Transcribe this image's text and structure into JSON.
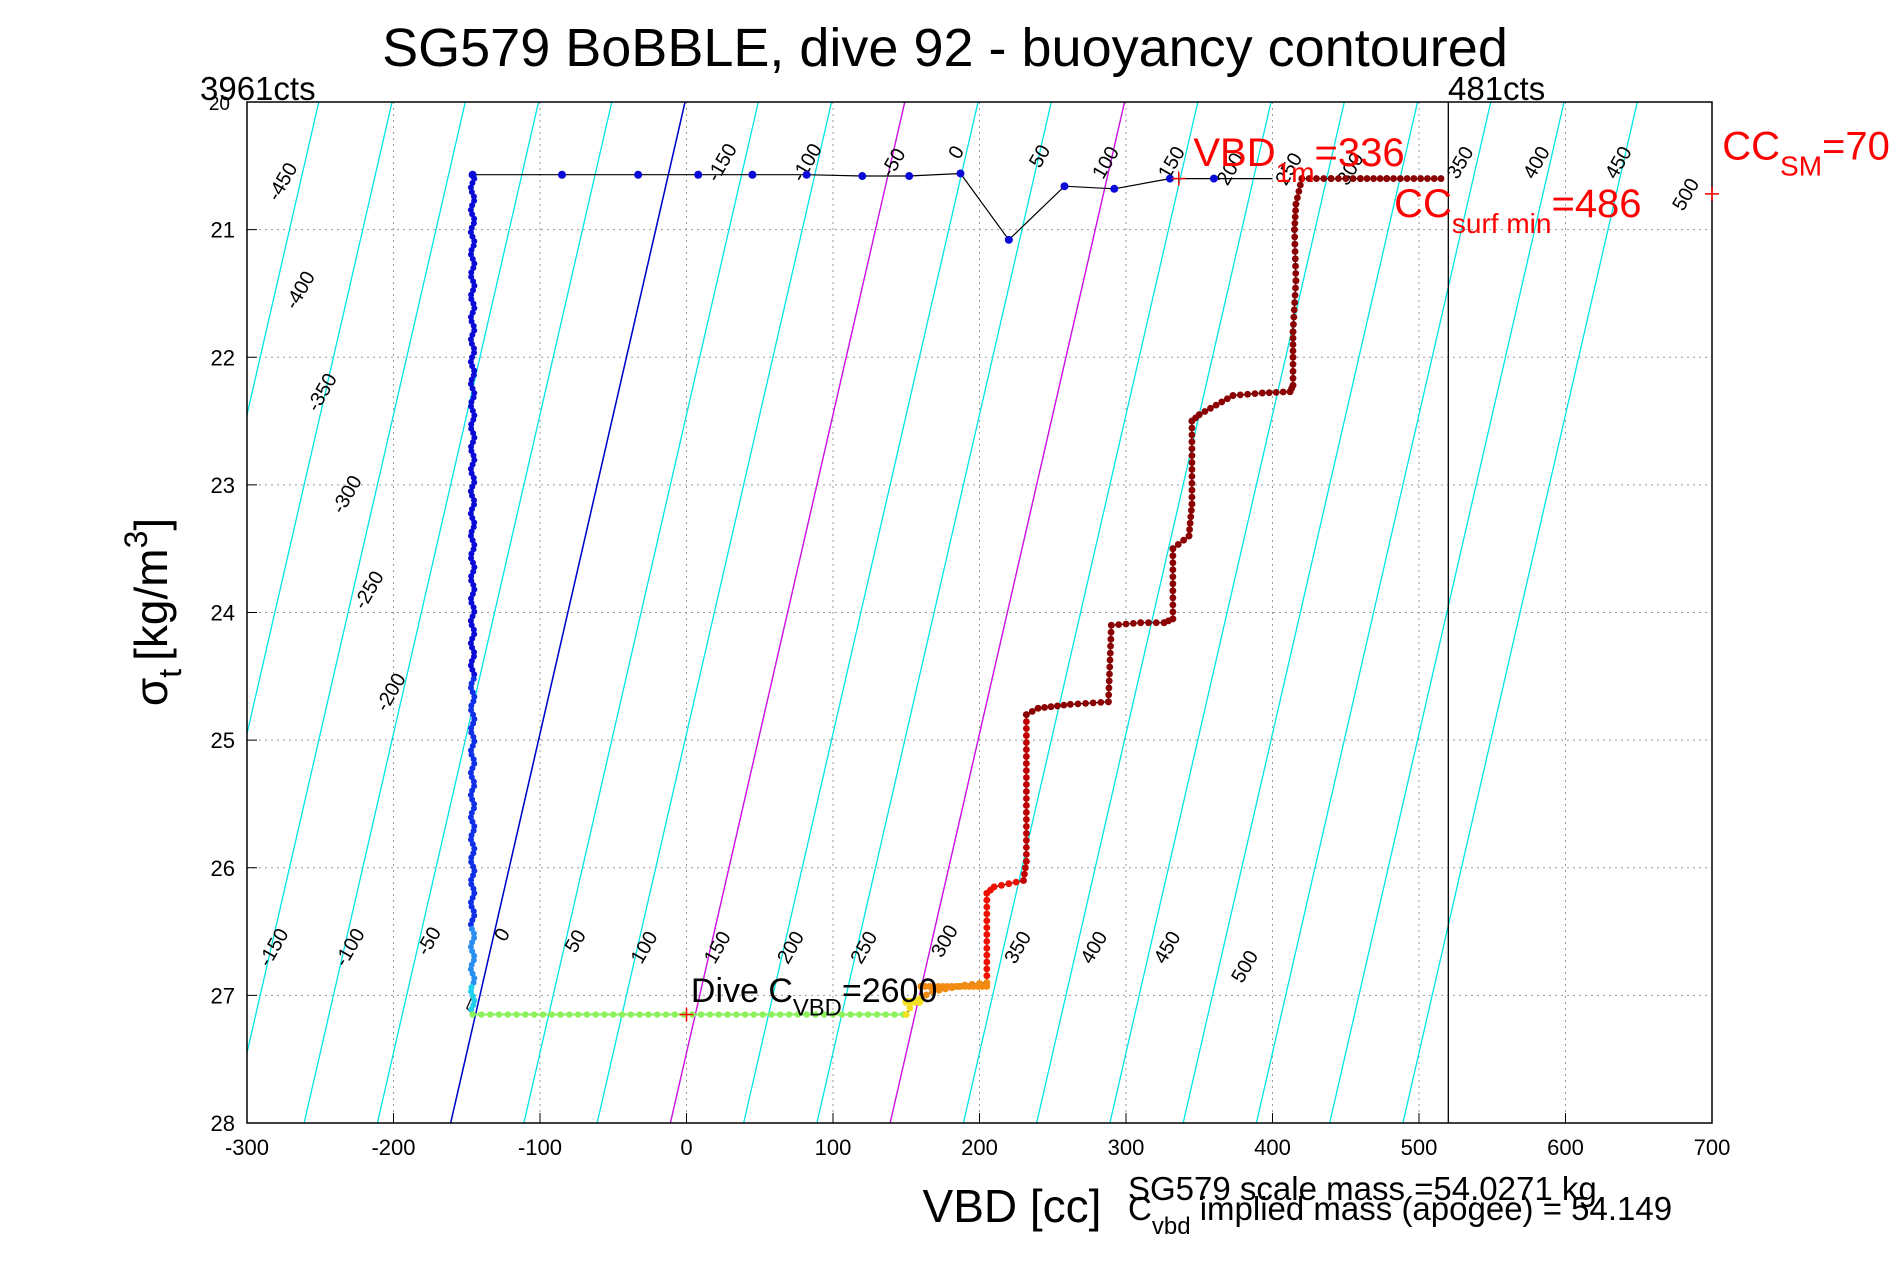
{
  "chart_data": {
    "type": "scatter",
    "title": "SG579 BoBBLE, dive 92 - buoyancy contoured",
    "xlabel": "VBD [cc]",
    "ylabel_main": "σ",
    "ylabel_sub": "t",
    "ylabel_unit": "[kg/m",
    "ylabel_sup": "3",
    "ylabel_close": "]",
    "xlim": [
      -300,
      700
    ],
    "ylim": [
      20,
      28
    ],
    "y_reversed": true,
    "grid": true,
    "x_ticks": [
      -300,
      -200,
      -100,
      0,
      100,
      200,
      300,
      400,
      500,
      600,
      700
    ],
    "y_ticks": [
      21,
      22,
      23,
      24,
      25,
      26,
      27,
      28
    ],
    "y_top_tick_label": "20",
    "top_left_label": "3961cts",
    "top_right_label": "481cts",
    "vertical_line_x": 520,
    "diagonal_lines": {
      "slope_cc_per_sigma": 16.07,
      "cyan_offsets": [
        -500,
        -450,
        -400,
        -350,
        -300,
        -250,
        -200,
        -150,
        -100,
        -50,
        0,
        50,
        100,
        150,
        200,
        250,
        300,
        350,
        400,
        450,
        500,
        550,
        600,
        650
      ],
      "blue_offset": 0,
      "magenta_offsets": [
        150,
        300
      ],
      "colors": {
        "cyan": "#00e5e5",
        "blue": "#0000cc",
        "magenta": "#e600e6"
      }
    },
    "contour_labels_top": [
      {
        "label": "-450",
        "x": -272,
        "y": 20.65
      },
      {
        "label": "-400",
        "x": -260,
        "y": 21.5
      },
      {
        "label": "-350",
        "x": -245,
        "y": 22.3
      },
      {
        "label": "-300",
        "x": -228,
        "y": 23.1
      },
      {
        "label": "-250",
        "x": -213,
        "y": 23.85
      },
      {
        "label": "-200",
        "x": -198,
        "y": 24.65
      },
      {
        "label": "-150",
        "x": 28,
        "y": 20.5
      },
      {
        "label": "-100",
        "x": 86,
        "y": 20.5
      },
      {
        "label": "-50",
        "x": 145,
        "y": 20.5
      },
      {
        "label": "0",
        "x": 188,
        "y": 20.42
      },
      {
        "label": "50",
        "x": 245,
        "y": 20.45
      },
      {
        "label": "100",
        "x": 290,
        "y": 20.5
      },
      {
        "label": "150",
        "x": 335,
        "y": 20.5
      },
      {
        "label": "200",
        "x": 375,
        "y": 20.55
      },
      {
        "label": "250",
        "x": 415,
        "y": 20.55
      },
      {
        "label": "300",
        "x": 457,
        "y": 20.55
      },
      {
        "label": "350",
        "x": 532,
        "y": 20.5
      },
      {
        "label": "400",
        "x": 584,
        "y": 20.5
      },
      {
        "label": "450",
        "x": 640,
        "y": 20.5
      },
      {
        "label": "500",
        "x": 686,
        "y": 20.75
      }
    ],
    "contour_labels_bottom": [
      {
        "label": "-150",
        "x": -278,
        "y": 26.65
      },
      {
        "label": "-100",
        "x": -226,
        "y": 26.65
      },
      {
        "label": "-50",
        "x": -172,
        "y": 26.6
      },
      {
        "label": "0",
        "x": -122,
        "y": 26.55
      },
      {
        "label": "50",
        "x": -72,
        "y": 26.6
      },
      {
        "label": "100",
        "x": -25,
        "y": 26.65
      },
      {
        "label": "150",
        "x": 25,
        "y": 26.65
      },
      {
        "label": "200",
        "x": 75,
        "y": 26.65
      },
      {
        "label": "250",
        "x": 125,
        "y": 26.65
      },
      {
        "label": "300",
        "x": 180,
        "y": 26.6
      },
      {
        "label": "350",
        "x": 230,
        "y": 26.65
      },
      {
        "label": "400",
        "x": 282,
        "y": 26.65
      },
      {
        "label": "450",
        "x": 332,
        "y": 26.65
      },
      {
        "label": "500",
        "x": 385,
        "y": 26.8
      }
    ],
    "descent_path": [
      [
        400,
        20.6
      ],
      [
        360,
        20.6
      ],
      [
        330,
        20.6
      ],
      [
        292,
        20.68
      ],
      [
        258,
        20.66
      ],
      [
        220,
        21.08
      ],
      [
        187,
        20.56
      ],
      [
        152,
        20.58
      ],
      [
        120,
        20.58
      ],
      [
        82,
        20.57
      ],
      [
        45,
        20.57
      ],
      [
        8,
        20.57
      ],
      [
        -33,
        20.57
      ],
      [
        -85,
        20.57
      ],
      [
        -143,
        20.57
      ],
      [
        -146,
        20.57
      ],
      [
        -146,
        21.0
      ],
      [
        -146,
        27.0
      ],
      [
        -150,
        27.1
      ],
      [
        -146,
        27.15
      ]
    ],
    "descent_points": [
      [
        360,
        20.6
      ],
      [
        330,
        20.6
      ],
      [
        292,
        20.68
      ],
      [
        258,
        20.66
      ],
      [
        220,
        21.08
      ],
      [
        187,
        20.56
      ],
      [
        152,
        20.58
      ],
      [
        120,
        20.58
      ],
      [
        82,
        20.57
      ],
      [
        45,
        20.57
      ],
      [
        8,
        20.57
      ],
      [
        -33,
        20.57
      ],
      [
        -85,
        20.57
      ],
      [
        -146,
        20.57
      ]
    ],
    "bottom_path": [
      [
        -146,
        27.15
      ],
      [
        150,
        27.15
      ]
    ],
    "ascent_path": [
      [
        150,
        27.15
      ],
      [
        155,
        27.05
      ],
      [
        168,
        26.97
      ],
      [
        190,
        26.92
      ],
      [
        205,
        26.9
      ],
      [
        205,
        26.2
      ],
      [
        210,
        26.15
      ],
      [
        230,
        26.1
      ],
      [
        232,
        25.95
      ],
      [
        232,
        24.8
      ],
      [
        240,
        24.75
      ],
      [
        262,
        24.72
      ],
      [
        288,
        24.7
      ],
      [
        290,
        24.1
      ],
      [
        310,
        24.08
      ],
      [
        326,
        24.08
      ],
      [
        332,
        24.05
      ],
      [
        332,
        23.5
      ],
      [
        343,
        23.4
      ],
      [
        345,
        23.15
      ],
      [
        345,
        22.5
      ],
      [
        350,
        22.45
      ],
      [
        373,
        22.3
      ],
      [
        393,
        22.28
      ],
      [
        412,
        22.27
      ],
      [
        414,
        22.22
      ],
      [
        414,
        22.0
      ],
      [
        414,
        21.8
      ],
      [
        416,
        21.4
      ],
      [
        415,
        21.0
      ],
      [
        416,
        20.8
      ],
      [
        420,
        20.6
      ],
      [
        440,
        20.6
      ],
      [
        460,
        20.6
      ],
      [
        478,
        20.6
      ],
      [
        515,
        20.6
      ]
    ],
    "annotations": {
      "vbd_1m": {
        "text": "VBD",
        "sub": "1m",
        "value": "=336",
        "marker": [
          336,
          20.6
        ]
      },
      "cc_surf_min": {
        "text": "CC",
        "sub": "surf min",
        "value": "=486"
      },
      "cc_sm": {
        "text": "CC",
        "sub": "SM",
        "value": "=70",
        "marker": [
          700,
          20.72
        ]
      },
      "dive_c_vbd": {
        "text": "Dive C",
        "sub": "VBD",
        "value": "=2600",
        "marker": [
          0,
          27.15
        ]
      }
    },
    "footer": {
      "scale_mass": "SG579 scale mass =54.0271 kg",
      "implied_main": "C",
      "implied_sub": "vbd",
      "implied_rest": " implied mass (apogee) = 54.149"
    }
  }
}
